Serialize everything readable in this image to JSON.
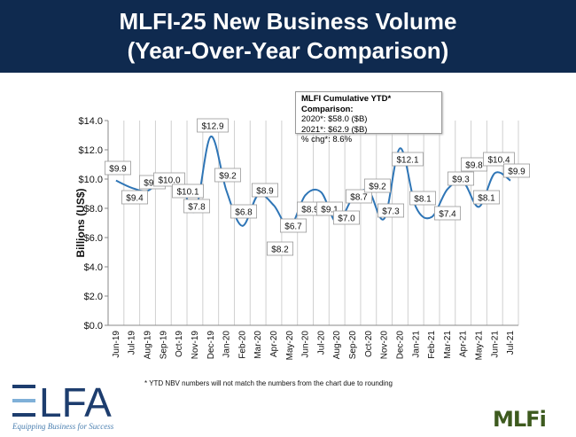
{
  "chart_data": {
    "type": "line",
    "title": "MLFI-25 New Business Volume",
    "subtitle": "(Year-Over-Year Comparison)",
    "ylabel": "Billions (US$)",
    "xlabel": "",
    "ylim": [
      0,
      14
    ],
    "yticks": [
      "$0.0",
      "$2.0",
      "$4.0",
      "$6.0",
      "$8.0",
      "$10.0",
      "$12.0",
      "$14.0"
    ],
    "grid": "vertical",
    "line_color": "#2e75b6",
    "categories": [
      "Jun-19",
      "Jul-19",
      "Aug-19",
      "Sep-19",
      "Oct-19",
      "Nov-19",
      "Dec-19",
      "Jan-20",
      "Feb-20",
      "Mar-20",
      "Apr-20",
      "May-20",
      "Jun-20",
      "Jul-20",
      "Aug-20",
      "Sep-20",
      "Oct-20",
      "Nov-20",
      "Dec-20",
      "Jan-21",
      "Feb-21",
      "Mar-21",
      "Apr-21",
      "May-21",
      "Jun-21",
      "Jul-21"
    ],
    "values": [
      9.9,
      9.4,
      9.2,
      10.0,
      10.1,
      7.8,
      12.9,
      9.2,
      6.8,
      8.9,
      8.2,
      6.7,
      8.9,
      9.1,
      7.0,
      8.7,
      9.2,
      7.3,
      12.1,
      8.1,
      7.4,
      9.3,
      9.8,
      8.1,
      10.4,
      9.9
    ],
    "data_labels": [
      "$9.9",
      "$9.4",
      "$9.2",
      "$10.0",
      "$10.1",
      "$7.8",
      "$12.9",
      "$9.2",
      "$6.8",
      "$8.9",
      "$8.2",
      "$6.7",
      "$8.9",
      "$9.1",
      "$7.0",
      "$8.7",
      "$9.2",
      "$7.3",
      "$12.1",
      "$8.1",
      "$7.4",
      "$9.3",
      "$9.8",
      "$8.1",
      "$10.4",
      "$9.9"
    ]
  },
  "annotation": {
    "heading": "MLFI Cumulative YTD* Comparison:",
    "line1": "2020*: $58.0 ($B)",
    "line2": "2021*: $62.9 ($B)",
    "line3": "% chg*:  8.6%"
  },
  "footnote": "* YTD NBV numbers will not match the numbers from the chart due to rounding",
  "logos": {
    "elfa": "ELFA",
    "elfa_tagline": "Equipping Business for Success",
    "mlfi": "MLFi"
  },
  "colors": {
    "banner": "#0f2a4f",
    "line": "#2e75b6"
  }
}
